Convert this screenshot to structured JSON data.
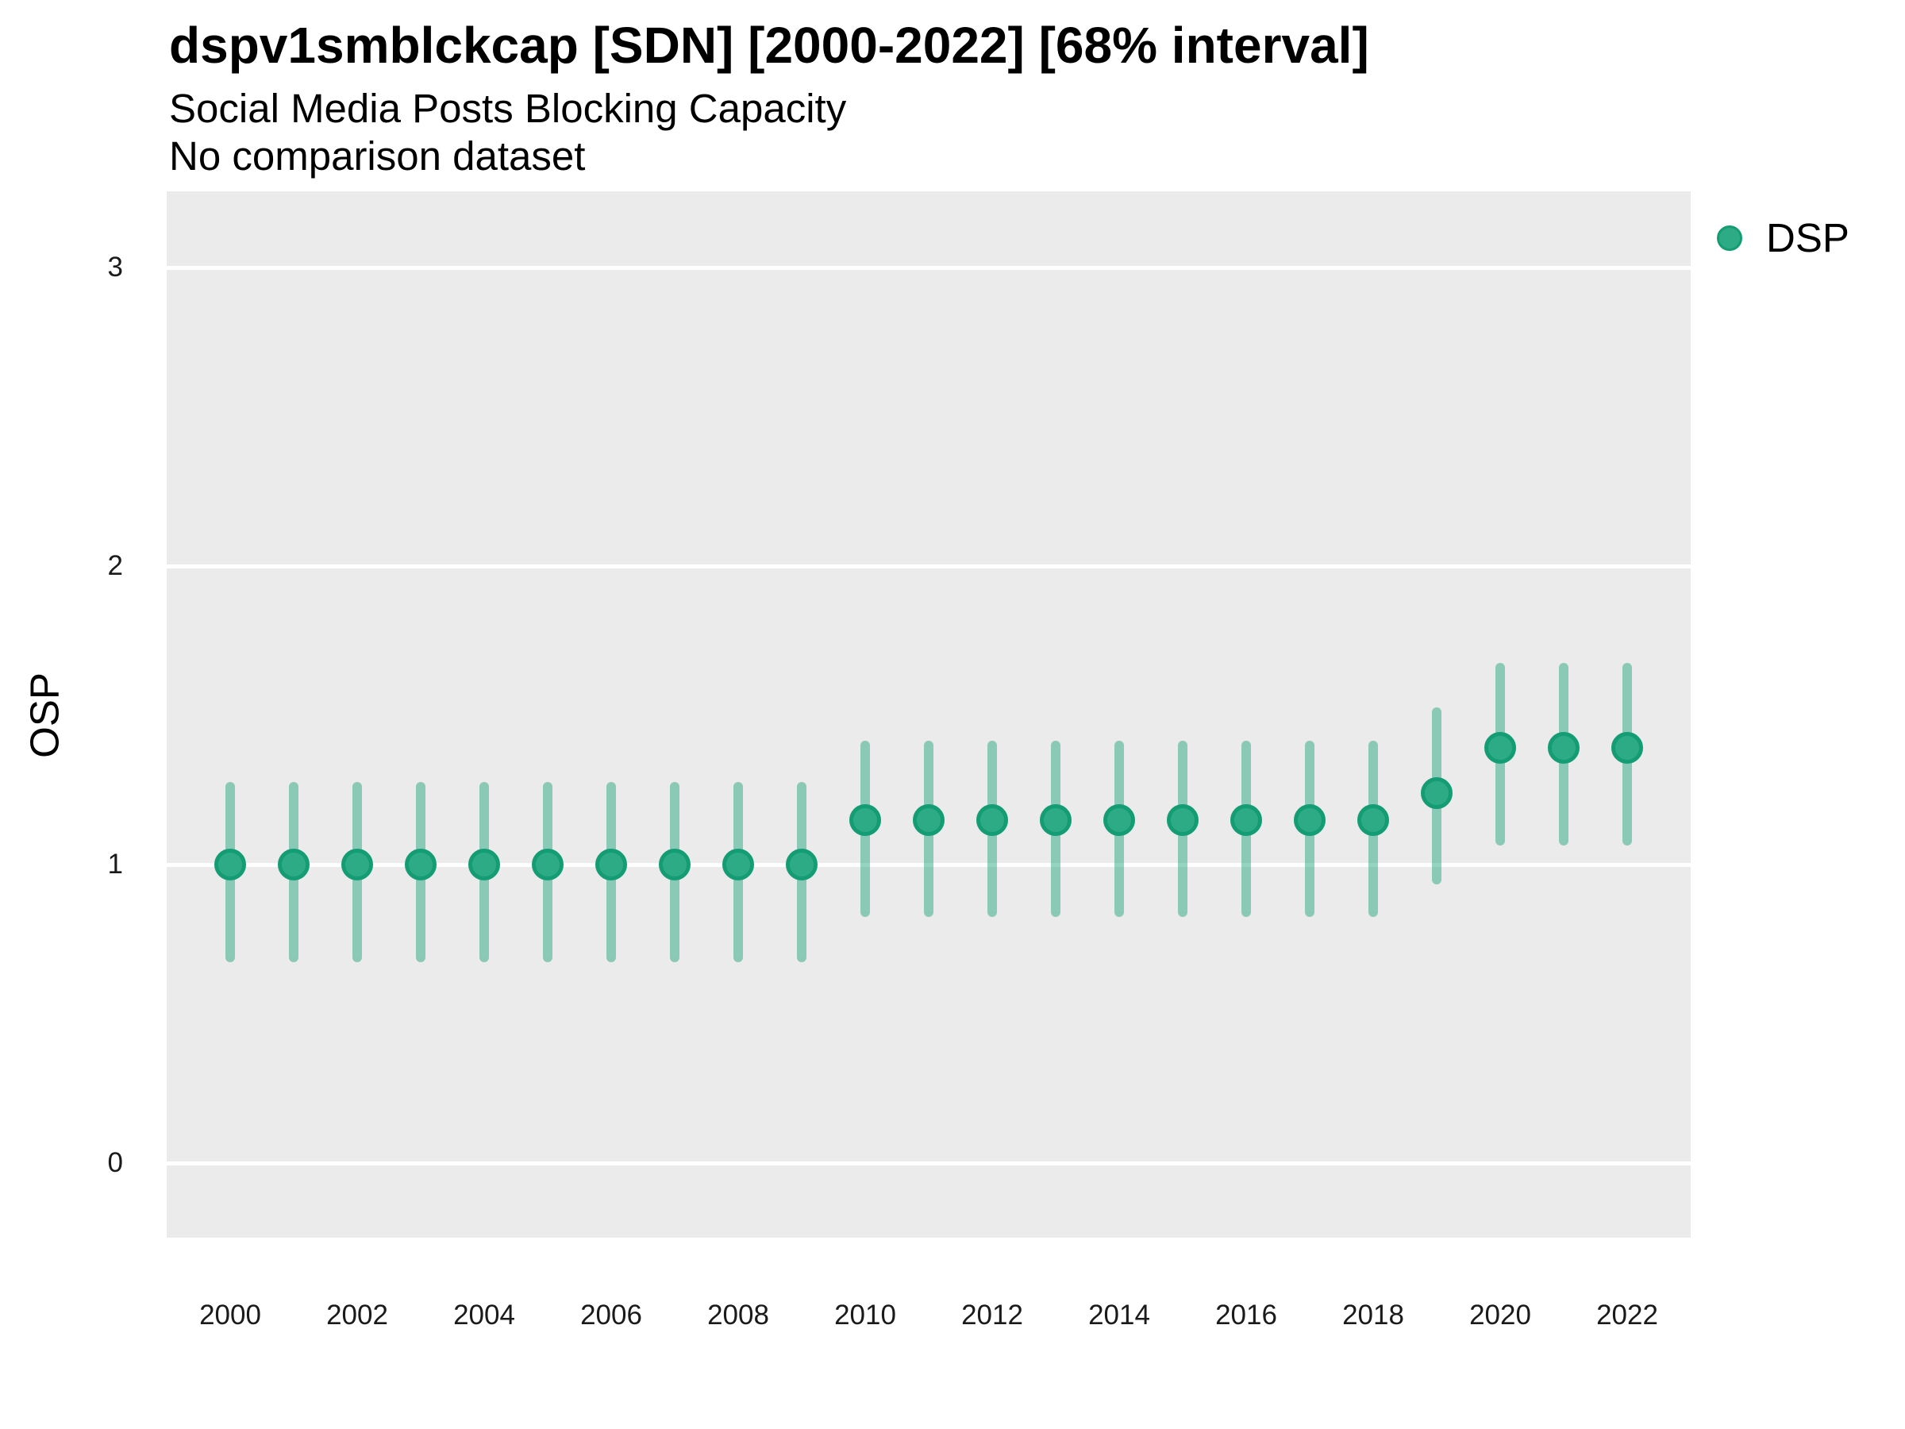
{
  "header": {
    "title": "dspv1smblckcap [SDN] [2000-2022] [68% interval]",
    "subtitle": "Social Media Posts Blocking Capacity",
    "note": "No comparison dataset"
  },
  "legend": {
    "position": "right",
    "items": [
      {
        "label": "DSP",
        "color": "#2DAB84",
        "border_color": "#149C74"
      }
    ]
  },
  "axes": {
    "y_label": "OSP",
    "x_label": "",
    "y_ticks": [
      0,
      1,
      2,
      3
    ],
    "x_ticks": [
      2000,
      2002,
      2004,
      2006,
      2008,
      2010,
      2012,
      2014,
      2016,
      2018,
      2020,
      2022
    ]
  },
  "colors": {
    "point_fill": "#2DAB84",
    "point_border": "#149C74",
    "interval_bar": "rgba(20,160,115,0.45)",
    "panel_background": "#EBEBEB",
    "gridline": "#FFFFFF",
    "text": "#000000"
  },
  "chart_data": {
    "type": "scatter",
    "title": "dspv1smblckcap [SDN] [2000-2022] [68% interval]",
    "subtitle": "Social Media Posts Blocking Capacity",
    "note": "No comparison dataset",
    "xlabel": "",
    "ylabel": "OSP",
    "interval_level": "68%",
    "legend_position": "right",
    "grid": "major horizontal white lines on gray panel",
    "xlim": [
      1999,
      2023
    ],
    "ylim": [
      -0.25,
      3.26
    ],
    "x_ticks": [
      2000,
      2002,
      2004,
      2006,
      2008,
      2010,
      2012,
      2014,
      2016,
      2018,
      2020,
      2022
    ],
    "y_ticks": [
      0,
      1,
      2,
      3
    ],
    "series": [
      {
        "name": "DSP",
        "x": [
          2000,
          2001,
          2002,
          2003,
          2004,
          2005,
          2006,
          2007,
          2008,
          2009,
          2010,
          2011,
          2012,
          2013,
          2014,
          2015,
          2016,
          2017,
          2018,
          2019,
          2020,
          2021,
          2022
        ],
        "y": [
          1.0,
          1.0,
          1.0,
          1.0,
          1.0,
          1.0,
          1.0,
          1.0,
          1.0,
          1.0,
          1.15,
          1.15,
          1.15,
          1.15,
          1.15,
          1.15,
          1.15,
          1.15,
          1.15,
          1.24,
          1.39,
          1.39,
          1.39
        ],
        "y_lo": [
          0.69,
          0.69,
          0.69,
          0.69,
          0.69,
          0.69,
          0.69,
          0.69,
          0.69,
          0.69,
          0.84,
          0.84,
          0.84,
          0.84,
          0.84,
          0.84,
          0.84,
          0.84,
          0.84,
          0.95,
          1.08,
          1.08,
          1.08
        ],
        "y_hi": [
          1.26,
          1.26,
          1.26,
          1.26,
          1.26,
          1.26,
          1.26,
          1.26,
          1.26,
          1.26,
          1.4,
          1.4,
          1.4,
          1.4,
          1.4,
          1.4,
          1.4,
          1.4,
          1.4,
          1.51,
          1.66,
          1.66,
          1.66
        ]
      }
    ]
  }
}
